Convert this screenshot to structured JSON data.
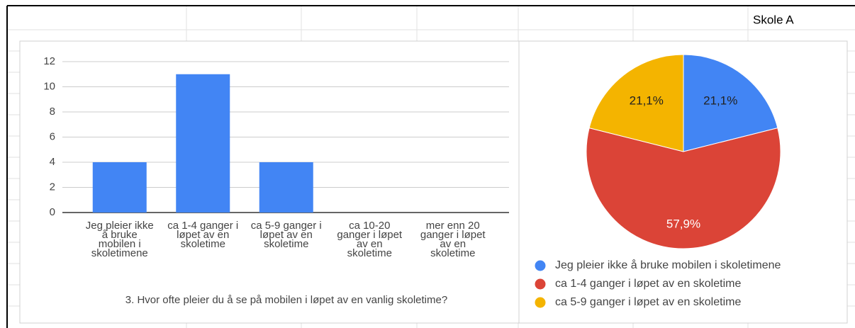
{
  "sheet": {
    "cell": "Skole A"
  },
  "chart_data": [
    {
      "type": "bar",
      "x_label": "3. Hvor ofte pleier du å se på mobilen i løpet av en vanlig skoletime?",
      "categories": [
        "Jeg pleier ikke å bruke mobilen i skoletimene",
        "ca 1-4 ganger i løpet av en skoletime",
        "ca 5-9 ganger i løpet av en skoletime",
        "ca 10-20 ganger i løpet av en skoletime",
        "mer enn 20 ganger i løpet av en skoletime"
      ],
      "values": [
        4,
        11,
        4,
        0,
        0
      ],
      "color": "#4285f4",
      "ylim": [
        0,
        12
      ],
      "yticks": [
        0,
        2,
        4,
        6,
        8,
        10,
        12
      ],
      "grid": true
    },
    {
      "type": "pie",
      "categories": [
        "Jeg pleier ikke å bruke mobilen i skoletimene",
        "ca 1-4 ganger i løpet av en skoletime",
        "ca 5-9 ganger i løpet av en skoletime"
      ],
      "values": [
        21.1,
        57.9,
        21.1
      ],
      "value_labels": [
        "21,1%",
        "57,9%",
        "21,1%"
      ],
      "colors": [
        "#4285f4",
        "#db4437",
        "#f4b400"
      ],
      "legend": "bottom"
    }
  ]
}
